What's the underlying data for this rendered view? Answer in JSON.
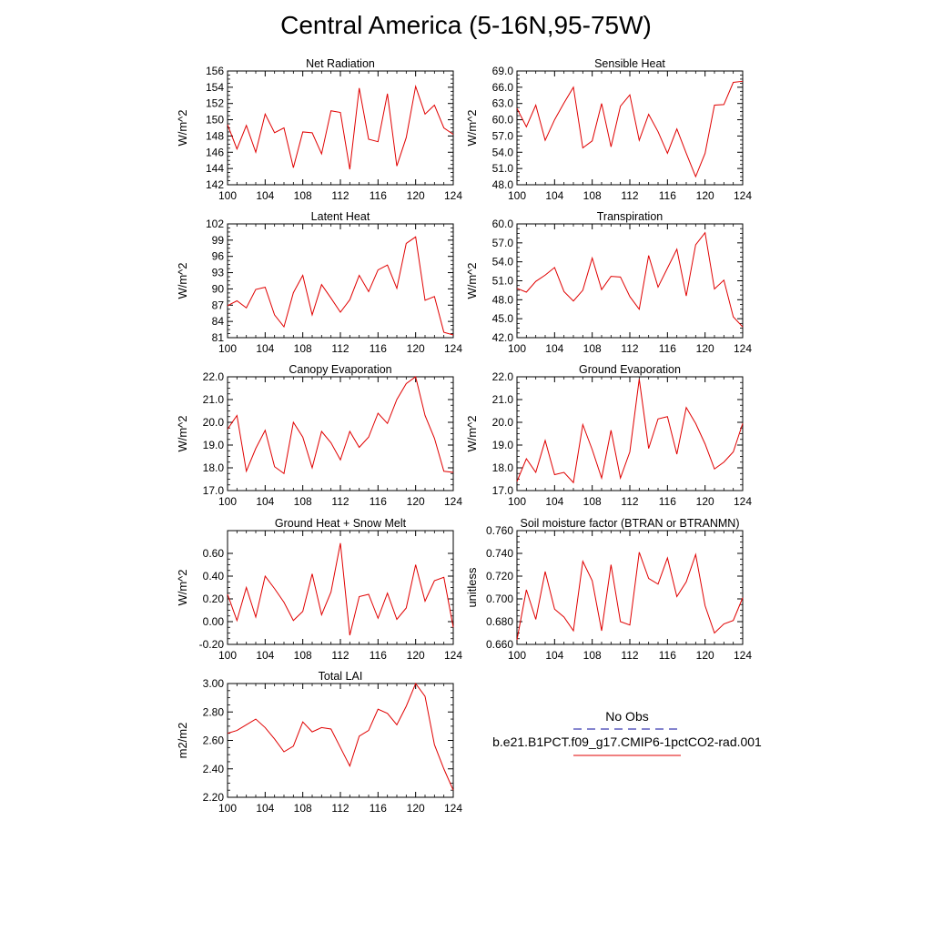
{
  "title": "Central America (5-16N,95-75W)",
  "legend": {
    "obs_label": "No Obs",
    "obs_color": "#3a3ab0",
    "model_label": "b.e21.B1PCT.f09_g17.CMIP6-1pctCO2-rad.001",
    "model_color": "#e00000"
  },
  "chart_data": [
    {
      "type": "line",
      "title": "Net Radiation",
      "ylabel": "W/m^2",
      "xlim": [
        100,
        124
      ],
      "ylim": [
        142,
        156
      ],
      "xticks": [
        "100",
        "104",
        "108",
        "112",
        "116",
        "120",
        "124"
      ],
      "yticks": [
        "142",
        "144",
        "146",
        "148",
        "150",
        "152",
        "154",
        "156"
      ],
      "x": [
        100,
        101,
        102,
        103,
        104,
        105,
        106,
        107,
        108,
        109,
        110,
        111,
        112,
        113,
        114,
        115,
        116,
        117,
        118,
        119,
        120,
        121,
        122,
        123,
        124
      ],
      "series": [
        {
          "values": [
            149.4,
            146.4,
            149.3,
            146.0,
            150.7,
            148.4,
            149.0,
            144.1,
            148.5,
            148.4,
            145.8,
            151.1,
            150.9,
            143.9,
            153.9,
            147.6,
            147.3,
            153.2,
            144.3,
            147.8,
            154.1,
            150.7,
            151.8,
            149.0,
            148.2
          ]
        }
      ]
    },
    {
      "type": "line",
      "title": "Sensible Heat",
      "ylabel": "W/m^2",
      "xlim": [
        100,
        124
      ],
      "ylim": [
        48.0,
        69.0
      ],
      "xticks": [
        "100",
        "104",
        "108",
        "112",
        "116",
        "120",
        "124"
      ],
      "yticks": [
        "48.0",
        "51.0",
        "54.0",
        "57.0",
        "60.0",
        "63.0",
        "66.0",
        "69.0"
      ],
      "x": [
        100,
        101,
        102,
        103,
        104,
        105,
        106,
        107,
        108,
        109,
        110,
        111,
        112,
        113,
        114,
        115,
        116,
        117,
        118,
        119,
        120,
        121,
        122,
        123,
        124
      ],
      "series": [
        {
          "values": [
            62.1,
            58.7,
            62.7,
            56.2,
            60.0,
            63.1,
            66.0,
            54.8,
            56.1,
            63.0,
            55.0,
            62.5,
            64.6,
            56.2,
            61.0,
            57.8,
            53.8,
            58.3,
            53.8,
            49.5,
            53.8,
            62.7,
            62.8,
            66.9,
            67.1
          ]
        }
      ]
    },
    {
      "type": "line",
      "title": "Latent Heat",
      "ylabel": "W/m^2",
      "xlim": [
        100,
        124
      ],
      "ylim": [
        81,
        102
      ],
      "xticks": [
        "100",
        "104",
        "108",
        "112",
        "116",
        "120",
        "124"
      ],
      "yticks": [
        "81",
        "84",
        "87",
        "90",
        "93",
        "96",
        "99",
        "102"
      ],
      "x": [
        100,
        101,
        102,
        103,
        104,
        105,
        106,
        107,
        108,
        109,
        110,
        111,
        112,
        113,
        114,
        115,
        116,
        117,
        118,
        119,
        120,
        121,
        122,
        123,
        124
      ],
      "series": [
        {
          "values": [
            86.9,
            87.8,
            86.5,
            89.9,
            90.3,
            85.2,
            83.0,
            89.3,
            92.5,
            85.2,
            90.8,
            88.3,
            85.7,
            88.0,
            92.5,
            89.5,
            93.5,
            94.4,
            90.1,
            98.4,
            99.6,
            87.9,
            88.6,
            82.0,
            81.5
          ]
        }
      ]
    },
    {
      "type": "line",
      "title": "Transpiration",
      "ylabel": "W/m^2",
      "xlim": [
        100,
        124
      ],
      "ylim": [
        42.0,
        60.0
      ],
      "xticks": [
        "100",
        "104",
        "108",
        "112",
        "116",
        "120",
        "124"
      ],
      "yticks": [
        "42.0",
        "45.0",
        "48.0",
        "51.0",
        "54.0",
        "57.0",
        "60.0"
      ],
      "x": [
        100,
        101,
        102,
        103,
        104,
        105,
        106,
        107,
        108,
        109,
        110,
        111,
        112,
        113,
        114,
        115,
        116,
        117,
        118,
        119,
        120,
        121,
        122,
        123,
        124
      ],
      "series": [
        {
          "values": [
            49.8,
            49.2,
            50.9,
            51.9,
            53.1,
            49.3,
            47.8,
            49.5,
            54.6,
            49.6,
            51.7,
            51.6,
            48.5,
            46.5,
            55.0,
            50.0,
            53.0,
            56.0,
            48.6,
            56.7,
            58.6,
            49.7,
            51.1,
            45.3,
            43.7
          ]
        }
      ]
    },
    {
      "type": "line",
      "title": "Canopy Evaporation",
      "ylabel": "W/m^2",
      "xlim": [
        100,
        124
      ],
      "ylim": [
        17.0,
        22.0
      ],
      "xticks": [
        "100",
        "104",
        "108",
        "112",
        "116",
        "120",
        "124"
      ],
      "yticks": [
        "17.0",
        "18.0",
        "19.0",
        "20.0",
        "21.0",
        "22.0"
      ],
      "x": [
        100,
        101,
        102,
        103,
        104,
        105,
        106,
        107,
        108,
        109,
        110,
        111,
        112,
        113,
        114,
        115,
        116,
        117,
        118,
        119,
        120,
        121,
        122,
        123,
        124
      ],
      "series": [
        {
          "values": [
            19.7,
            20.3,
            17.85,
            18.85,
            19.65,
            18.05,
            17.75,
            20.0,
            19.35,
            18.0,
            19.6,
            19.1,
            18.35,
            19.6,
            18.9,
            19.35,
            20.4,
            19.95,
            21.0,
            21.7,
            22.0,
            20.3,
            19.3,
            17.85,
            17.8
          ]
        }
      ]
    },
    {
      "type": "line",
      "title": "Ground Evaporation",
      "ylabel": "W/m^2",
      "xlim": [
        100,
        124
      ],
      "ylim": [
        17.0,
        22.0
      ],
      "xticks": [
        "100",
        "104",
        "108",
        "112",
        "116",
        "120",
        "124"
      ],
      "yticks": [
        "17.0",
        "18.0",
        "19.0",
        "20.0",
        "21.0",
        "22.0"
      ],
      "x": [
        100,
        101,
        102,
        103,
        104,
        105,
        106,
        107,
        108,
        109,
        110,
        111,
        112,
        113,
        114,
        115,
        116,
        117,
        118,
        119,
        120,
        121,
        122,
        123,
        124
      ],
      "series": [
        {
          "values": [
            17.4,
            18.4,
            17.8,
            19.2,
            17.7,
            17.8,
            17.35,
            19.9,
            18.8,
            17.55,
            19.65,
            17.55,
            18.7,
            21.9,
            18.85,
            20.15,
            20.25,
            18.6,
            20.65,
            19.95,
            19.05,
            17.95,
            18.25,
            18.7,
            19.95
          ]
        }
      ]
    },
    {
      "type": "line",
      "title": "Ground Heat + Snow Melt",
      "ylabel": "W/m^2",
      "xlim": [
        100,
        124
      ],
      "ylim": [
        -0.2,
        0.8
      ],
      "xticks": [
        "100",
        "104",
        "108",
        "112",
        "116",
        "120",
        "124"
      ],
      "yticks": [
        "-0.20",
        "0.00",
        "0.20",
        "0.40",
        "0.60"
      ],
      "ytick_values": [
        -0.2,
        0.0,
        0.2,
        0.4,
        0.6
      ],
      "x": [
        100,
        101,
        102,
        103,
        104,
        105,
        106,
        107,
        108,
        109,
        110,
        111,
        112,
        113,
        114,
        115,
        116,
        117,
        118,
        119,
        120,
        121,
        122,
        123,
        124
      ],
      "series": [
        {
          "values": [
            0.24,
            0.01,
            0.3,
            0.04,
            0.4,
            0.29,
            0.17,
            0.01,
            0.09,
            0.42,
            0.06,
            0.26,
            0.69,
            -0.12,
            0.22,
            0.24,
            0.03,
            0.25,
            0.02,
            0.12,
            0.5,
            0.18,
            0.36,
            0.39,
            -0.05
          ]
        }
      ]
    },
    {
      "type": "line",
      "title": "Soil moisture factor (BTRAN or BTRANMN)",
      "ylabel": "unitless",
      "xlim": [
        100,
        124
      ],
      "ylim": [
        0.66,
        0.76
      ],
      "xticks": [
        "100",
        "104",
        "108",
        "112",
        "116",
        "120",
        "124"
      ],
      "yticks": [
        "0.660",
        "0.680",
        "0.700",
        "0.720",
        "0.740",
        "0.760"
      ],
      "x": [
        100,
        101,
        102,
        103,
        104,
        105,
        106,
        107,
        108,
        109,
        110,
        111,
        112,
        113,
        114,
        115,
        116,
        117,
        118,
        119,
        120,
        121,
        122,
        123,
        124
      ],
      "series": [
        {
          "values": [
            0.664,
            0.708,
            0.682,
            0.724,
            0.691,
            0.684,
            0.672,
            0.733,
            0.716,
            0.672,
            0.73,
            0.68,
            0.677,
            0.741,
            0.718,
            0.713,
            0.736,
            0.702,
            0.715,
            0.739,
            0.694,
            0.67,
            0.678,
            0.681,
            0.701
          ]
        }
      ]
    },
    {
      "type": "line",
      "title": "Total LAI",
      "ylabel": "m2/m2",
      "xlim": [
        100,
        124
      ],
      "ylim": [
        2.2,
        3.0
      ],
      "xticks": [
        "100",
        "104",
        "108",
        "112",
        "116",
        "120",
        "124"
      ],
      "yticks": [
        "2.20",
        "2.40",
        "2.60",
        "2.80",
        "3.00"
      ],
      "x": [
        100,
        101,
        102,
        103,
        104,
        105,
        106,
        107,
        108,
        109,
        110,
        111,
        112,
        113,
        114,
        115,
        116,
        117,
        118,
        119,
        120,
        121,
        122,
        123,
        124
      ],
      "series": [
        {
          "values": [
            2.65,
            2.67,
            2.71,
            2.75,
            2.69,
            2.61,
            2.52,
            2.56,
            2.73,
            2.66,
            2.69,
            2.68,
            2.55,
            2.42,
            2.63,
            2.67,
            2.82,
            2.79,
            2.71,
            2.84,
            3.0,
            2.91,
            2.57,
            2.4,
            2.25
          ]
        }
      ]
    }
  ]
}
